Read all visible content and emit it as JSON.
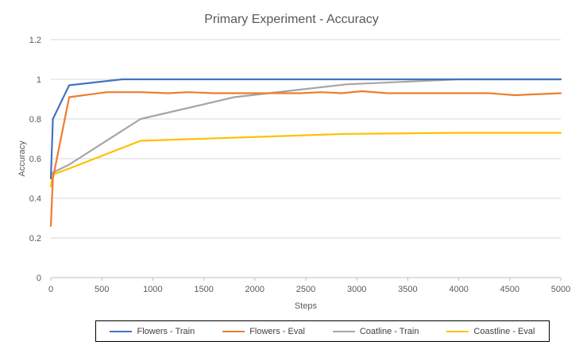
{
  "chart_data": {
    "type": "line",
    "title": "Primary Experiment - Accuracy",
    "xlabel": "Steps",
    "ylabel": "Accuracy",
    "xlim": [
      0,
      5000
    ],
    "ylim": [
      0,
      1.2
    ],
    "x_ticks": [
      0,
      500,
      1000,
      1500,
      2000,
      2500,
      3000,
      3500,
      4000,
      4500,
      5000
    ],
    "y_ticks": [
      0,
      0.2,
      0.4,
      0.6,
      0.8,
      1,
      1.2
    ],
    "grid": "horizontal",
    "legend_position": "bottom",
    "series": [
      {
        "name": "Flowers - Train",
        "color": "#4472C4",
        "points": [
          [
            0,
            0.5
          ],
          [
            20,
            0.8
          ],
          [
            180,
            0.97
          ],
          [
            700,
            1.0
          ],
          [
            5000,
            1.0
          ]
        ]
      },
      {
        "name": "Flowers - Eval",
        "color": "#ED7D31",
        "points": [
          [
            0,
            0.26
          ],
          [
            20,
            0.5
          ],
          [
            180,
            0.91
          ],
          [
            550,
            0.935
          ],
          [
            880,
            0.935
          ],
          [
            1150,
            0.93
          ],
          [
            1350,
            0.935
          ],
          [
            1600,
            0.93
          ],
          [
            2100,
            0.93
          ],
          [
            2450,
            0.93
          ],
          [
            2650,
            0.935
          ],
          [
            2850,
            0.93
          ],
          [
            3050,
            0.94
          ],
          [
            3300,
            0.93
          ],
          [
            3800,
            0.93
          ],
          [
            4300,
            0.93
          ],
          [
            4550,
            0.92
          ],
          [
            5000,
            0.93
          ]
        ]
      },
      {
        "name": "Coatline - Train",
        "color": "#A5A5A5",
        "points": [
          [
            0,
            0.5
          ],
          [
            20,
            0.53
          ],
          [
            180,
            0.57
          ],
          [
            880,
            0.8
          ],
          [
            1800,
            0.91
          ],
          [
            2900,
            0.975
          ],
          [
            4000,
            1.0
          ],
          [
            5000,
            1.0
          ]
        ]
      },
      {
        "name": "Coastline - Eval",
        "color": "#FFC000",
        "points": [
          [
            0,
            0.46
          ],
          [
            20,
            0.52
          ],
          [
            180,
            0.55
          ],
          [
            880,
            0.69
          ],
          [
            2900,
            0.725
          ],
          [
            4000,
            0.73
          ],
          [
            5000,
            0.73
          ]
        ]
      }
    ]
  }
}
